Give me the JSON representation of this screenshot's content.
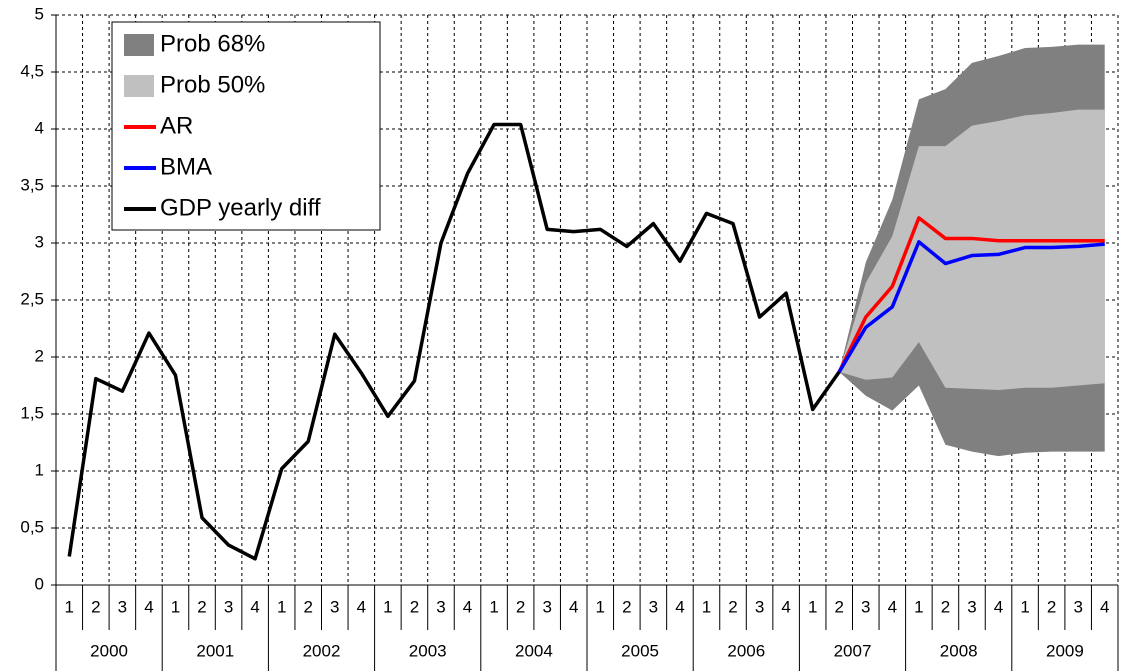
{
  "chart_data": {
    "type": "fan",
    "categories": [
      "1",
      "2",
      "3",
      "4",
      "1",
      "2",
      "3",
      "4",
      "1",
      "2",
      "3",
      "4",
      "1",
      "2",
      "3",
      "4",
      "1",
      "2",
      "3",
      "4",
      "1",
      "2",
      "3",
      "4",
      "1",
      "2",
      "3",
      "4",
      "1",
      "2",
      "3",
      "4",
      "1",
      "2",
      "3",
      "4",
      "1",
      "2",
      "3",
      "4"
    ],
    "years": [
      "2000",
      "2001",
      "2002",
      "2003",
      "2004",
      "2005",
      "2006",
      "2007",
      "2008",
      "2009"
    ],
    "ylim": [
      0,
      5
    ],
    "yticks": [
      0,
      {
        "value": 0.5,
        "label": "0,5"
      },
      1,
      {
        "value": 1.5,
        "label": "1,5"
      },
      2,
      {
        "value": 2.5,
        "label": "2,5"
      },
      3,
      {
        "value": 3.5,
        "label": "3,5"
      },
      4,
      {
        "value": 4.5,
        "label": "4,5"
      },
      5
    ],
    "grid": true,
    "legend": "upper left",
    "bands": [
      {
        "name": "Prob 68%",
        "color": "#808080",
        "upper": [
          null,
          null,
          null,
          null,
          null,
          null,
          null,
          null,
          null,
          null,
          null,
          null,
          null,
          null,
          null,
          null,
          null,
          null,
          null,
          null,
          null,
          null,
          null,
          null,
          null,
          null,
          null,
          null,
          null,
          1.87,
          2.83,
          3.38,
          4.26,
          4.35,
          4.58,
          4.64,
          4.71,
          4.72,
          4.74,
          4.74
        ],
        "lower": [
          null,
          null,
          null,
          null,
          null,
          null,
          null,
          null,
          null,
          null,
          null,
          null,
          null,
          null,
          null,
          null,
          null,
          null,
          null,
          null,
          null,
          null,
          null,
          null,
          null,
          null,
          null,
          null,
          null,
          1.87,
          1.66,
          1.53,
          1.75,
          1.23,
          1.17,
          1.13,
          1.16,
          1.17,
          1.17,
          1.17
        ]
      },
      {
        "name": "Prob 50%",
        "color": "#c0c0c0",
        "upper": [
          null,
          null,
          null,
          null,
          null,
          null,
          null,
          null,
          null,
          null,
          null,
          null,
          null,
          null,
          null,
          null,
          null,
          null,
          null,
          null,
          null,
          null,
          null,
          null,
          null,
          null,
          null,
          null,
          null,
          1.87,
          2.65,
          3.06,
          3.85,
          3.85,
          4.03,
          4.07,
          4.12,
          4.14,
          4.17,
          4.17
        ],
        "lower": [
          null,
          null,
          null,
          null,
          null,
          null,
          null,
          null,
          null,
          null,
          null,
          null,
          null,
          null,
          null,
          null,
          null,
          null,
          null,
          null,
          null,
          null,
          null,
          null,
          null,
          null,
          null,
          null,
          null,
          1.87,
          1.8,
          1.82,
          2.13,
          1.73,
          1.72,
          1.71,
          1.73,
          1.73,
          1.75,
          1.77
        ]
      }
    ],
    "series": [
      {
        "name": "AR",
        "color": "#ff0000",
        "values": [
          null,
          null,
          null,
          null,
          null,
          null,
          null,
          null,
          null,
          null,
          null,
          null,
          null,
          null,
          null,
          null,
          null,
          null,
          null,
          null,
          null,
          null,
          null,
          null,
          null,
          null,
          null,
          null,
          null,
          1.87,
          2.35,
          2.62,
          3.22,
          3.04,
          3.04,
          3.02,
          3.02,
          3.02,
          3.02,
          3.02
        ]
      },
      {
        "name": "BMA",
        "color": "#0000ff",
        "values": [
          null,
          null,
          null,
          null,
          null,
          null,
          null,
          null,
          null,
          null,
          null,
          null,
          null,
          null,
          null,
          null,
          null,
          null,
          null,
          null,
          null,
          null,
          null,
          null,
          null,
          null,
          null,
          null,
          null,
          1.87,
          2.26,
          2.44,
          3.01,
          2.82,
          2.89,
          2.9,
          2.96,
          2.96,
          2.97,
          2.99
        ]
      },
      {
        "name": "GDP yearly diff",
        "color": "#000000",
        "values": [
          0.25,
          1.81,
          1.7,
          2.21,
          1.84,
          0.59,
          0.35,
          0.23,
          1.02,
          1.26,
          2.2,
          1.86,
          1.48,
          1.79,
          3.0,
          3.61,
          4.04,
          4.04,
          3.12,
          3.1,
          3.12,
          2.97,
          3.17,
          2.84,
          3.26,
          3.17,
          2.35,
          2.56,
          1.54,
          1.87,
          null,
          null,
          null,
          null,
          null,
          null,
          null,
          null,
          null,
          null
        ]
      }
    ]
  }
}
